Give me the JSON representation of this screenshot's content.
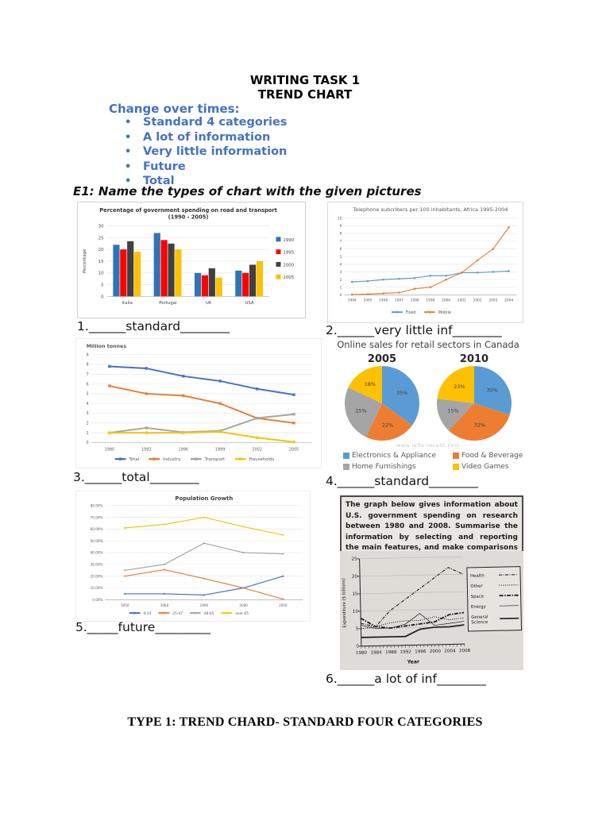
{
  "page": {
    "title_line1": "WRITING TASK 1",
    "title_line2": "TREND CHART",
    "intro_heading": "Change over times:",
    "bullets": [
      "Standard 4 categories",
      "A lot of information",
      "Very little information",
      "Future",
      "Total"
    ],
    "exercise_heading": "E1: Name the types of chart with the given pictures",
    "footer_heading": "TYPE 1: TREND CHARD- STANDARD FOUR CATEGORIES",
    "accent_blue": "#4472C4"
  },
  "answers": [
    {
      "text": "1.______standard________"
    },
    {
      "text": "2.______very little inf________"
    },
    {
      "text": "3.______total________"
    },
    {
      "text": "4.______standard________"
    },
    {
      "text": "5._____future_________"
    },
    {
      "text": "6.______a lot of inf________"
    }
  ],
  "chart_data": [
    {
      "type": "bar",
      "title": "Percentage of government spending on road and transport",
      "subtitle": "(1990 - 2005)",
      "ylabel": "Percentage",
      "ylim": [
        0,
        30
      ],
      "ytick_step": 5,
      "categories": [
        "Italia",
        "Portugal",
        "UK",
        "USA"
      ],
      "series": [
        {
          "name": "1990",
          "color": "#2E75B6",
          "values": [
            22,
            27,
            10,
            11
          ]
        },
        {
          "name": "1995",
          "color": "#FF0000",
          "values": [
            20,
            24,
            9,
            10
          ]
        },
        {
          "name": "2000",
          "color": "#404040",
          "values": [
            23.5,
            22.5,
            12,
            13.5
          ]
        },
        {
          "name": "2005",
          "color": "#FFC000",
          "values": [
            19,
            20,
            8,
            15
          ]
        }
      ],
      "legend_position": "right",
      "grid": true
    },
    {
      "type": "line",
      "title": "Telephone subcribers per 100 inhabitants, Africa 1995-2004",
      "x": [
        "1994",
        "1995",
        "1996",
        "1997",
        "1998",
        "1999",
        "2000",
        "2001",
        "2002",
        "2003",
        "2004"
      ],
      "ylim": [
        0,
        10
      ],
      "ytick_step": 1,
      "series": [
        {
          "name": "Fixed",
          "color": "#5B9BD5",
          "values": [
            1.7,
            1.8,
            2.0,
            2.1,
            2.2,
            2.5,
            2.5,
            2.9,
            2.9,
            3.0,
            3.1
          ]
        },
        {
          "name": "Mobile",
          "color": "#ED7D31",
          "values": [
            0.05,
            0.1,
            0.2,
            0.3,
            0.8,
            1.0,
            2.0,
            2.9,
            4.5,
            6.0,
            8.8
          ]
        }
      ],
      "legend_position": "bottom",
      "grid": true
    },
    {
      "type": "line",
      "title": "Million tonnes",
      "x": [
        "1990",
        "1993",
        "1996",
        "1999",
        "2002",
        "2005"
      ],
      "ylim": [
        0,
        9
      ],
      "ytick_step": 1,
      "series": [
        {
          "name": "Total",
          "color": "#4472C4",
          "values": [
            7.8,
            7.6,
            6.8,
            6.3,
            5.5,
            4.9
          ]
        },
        {
          "name": "Industry",
          "color": "#ED7D31",
          "values": [
            5.8,
            5.0,
            4.8,
            4.0,
            2.5,
            2.0
          ]
        },
        {
          "name": "Transport",
          "color": "#A5A5A5",
          "values": [
            1.0,
            1.5,
            1.05,
            1.2,
            2.5,
            2.9
          ]
        },
        {
          "name": "Households",
          "color": "#FFC000",
          "values": [
            1.0,
            1.0,
            1.0,
            1.1,
            0.5,
            0.05
          ]
        }
      ],
      "legend_position": "bottom",
      "grid": true
    },
    {
      "type": "pie",
      "title": "Online sales for retail sectors in Canada",
      "watermark": "www.ielts-recent.com",
      "legend": [
        {
          "name": "Electronics & Appliance",
          "color": "#5B9BD5"
        },
        {
          "name": "Food & Beverage",
          "color": "#ED7D31"
        },
        {
          "name": "Home Furnishings",
          "color": "#A5A5A5"
        },
        {
          "name": "Video Games",
          "color": "#FFC000"
        }
      ],
      "pies": [
        {
          "year": "2005",
          "values": [
            35,
            22,
            25,
            18
          ]
        },
        {
          "year": "2010",
          "values": [
            30,
            32,
            15,
            23
          ]
        }
      ]
    },
    {
      "type": "line",
      "title": "Population Growth",
      "x": [
        "1950",
        "1960",
        "1990",
        "2000",
        "2050"
      ],
      "ylim": [
        0,
        80
      ],
      "ytick_step": 10,
      "ytick_format": "0.00%",
      "series": [
        {
          "name": "0-14",
          "color": "#4472C4",
          "values": [
            5,
            5,
            4,
            10,
            20
          ]
        },
        {
          "name": "25-47",
          "color": "#ED7D31",
          "values": [
            20,
            25.5,
            18,
            10,
            0.5
          ]
        },
        {
          "name": "48-65",
          "color": "#A5A5A5",
          "values": [
            25,
            30,
            48,
            40,
            39
          ]
        },
        {
          "name": "over 65",
          "color": "#FFC000",
          "values": [
            61,
            64,
            70,
            62,
            55
          ]
        }
      ],
      "legend_position": "bottom",
      "grid": true
    },
    {
      "type": "line",
      "prompt": "The graph below gives information about U.S. government spending on research between 1980 and 2008. Summarise the information by selecting and reporting the main features, and make comparisons where relevant.",
      "xlabel": "Year",
      "ylabel": "Expenditure ($ billions)",
      "x": [
        "1980",
        "1984",
        "1988",
        "1992",
        "1996",
        "2000",
        "2004",
        "2008"
      ],
      "ylim": [
        0,
        25
      ],
      "ytick_step": 5,
      "series": [
        {
          "name": "Health",
          "dash": "4 1.5 1 1.5",
          "width": 1.1,
          "values": [
            6.5,
            5.5,
            10,
            13,
            16,
            19,
            22,
            20
          ]
        },
        {
          "name": "Other",
          "dash": "1 1.6",
          "width": 1.1,
          "values": [
            5,
            5.5,
            6.5,
            7,
            7,
            8,
            7,
            7.5
          ]
        },
        {
          "name": "Space",
          "dash": "5 1.5 1.5 1.5",
          "width": 1.8,
          "values": [
            8,
            5.5,
            5,
            5.5,
            6,
            6.5,
            8.5,
            9
          ]
        },
        {
          "name": "Energy",
          "dash": "",
          "width": 0.7,
          "values": [
            6,
            5,
            5,
            6,
            9,
            5.5,
            6,
            6.5
          ]
        },
        {
          "name": "General Science",
          "dash": "",
          "width": 1.7,
          "values": [
            2.5,
            2.5,
            2.5,
            2.5,
            4.5,
            5,
            5,
            5.5
          ]
        }
      ],
      "legend_position": "right-box",
      "grid": true
    }
  ]
}
